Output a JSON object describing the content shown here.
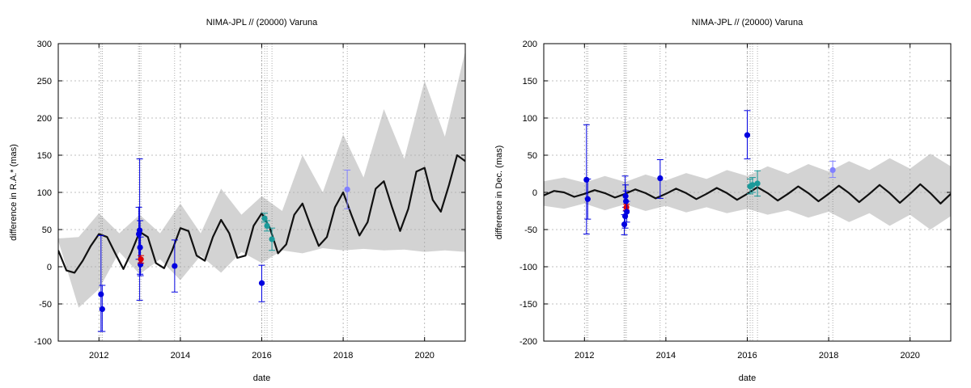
{
  "chart_data": [
    {
      "type": "scatter",
      "title": "NIMA-JPL // (20000) Varuna",
      "xlabel": "date",
      "ylabel": "difference in R.A.* (mas)",
      "xlim": [
        2011.0,
        2021.0
      ],
      "ylim": [
        -100,
        300
      ],
      "xticks": [
        2012,
        2014,
        2016,
        2018,
        2020
      ],
      "yticks": [
        -100,
        -50,
        0,
        50,
        100,
        150,
        200,
        250,
        300
      ],
      "grid": true,
      "observation_dates": [
        2012.05,
        2012.08,
        2012.97,
        2013.0,
        2013.03,
        2013.86,
        2016.0,
        2016.07,
        2016.13,
        2016.25,
        2018.1
      ],
      "uncertainty_band": {
        "x": [
          2011.0,
          2011.5,
          2012.0,
          2012.5,
          2013.0,
          2013.5,
          2014.0,
          2014.5,
          2015.0,
          2015.5,
          2016.0,
          2016.5,
          2017.0,
          2017.5,
          2018.0,
          2018.5,
          2019.0,
          2019.5,
          2020.0,
          2020.5,
          2021.0
        ],
        "lower": [
          35,
          -55,
          -30,
          20,
          -10,
          10,
          -18,
          15,
          -8,
          20,
          5,
          22,
          18,
          25,
          22,
          24,
          22,
          23,
          20,
          22,
          20
        ],
        "upper": [
          38,
          40,
          72,
          45,
          70,
          45,
          85,
          45,
          105,
          70,
          95,
          75,
          150,
          100,
          178,
          120,
          212,
          145,
          250,
          175,
          290
        ]
      },
      "model": {
        "x": [
          2011.0,
          2011.2,
          2011.4,
          2011.6,
          2011.8,
          2012.0,
          2012.2,
          2012.4,
          2012.6,
          2012.8,
          2013.0,
          2013.2,
          2013.4,
          2013.6,
          2013.8,
          2014.0,
          2014.2,
          2014.4,
          2014.6,
          2014.8,
          2015.0,
          2015.2,
          2015.4,
          2015.6,
          2015.8,
          2016.0,
          2016.2,
          2016.4,
          2016.6,
          2016.8,
          2017.0,
          2017.2,
          2017.4,
          2017.6,
          2017.8,
          2018.0,
          2018.2,
          2018.4,
          2018.6,
          2018.8,
          2019.0,
          2019.2,
          2019.4,
          2019.6,
          2019.8,
          2020.0,
          2020.2,
          2020.4,
          2020.6,
          2020.8,
          2021.0
        ],
        "y": [
          22,
          -5,
          -8,
          8,
          28,
          44,
          40,
          18,
          -3,
          20,
          47,
          40,
          5,
          -2,
          22,
          52,
          48,
          15,
          8,
          40,
          63,
          45,
          12,
          15,
          55,
          72,
          52,
          18,
          30,
          70,
          85,
          55,
          28,
          40,
          80,
          100,
          70,
          42,
          60,
          105,
          115,
          80,
          48,
          78,
          128,
          133,
          90,
          74,
          110,
          150,
          142
        ]
      },
      "points": [
        {
          "x": 2012.05,
          "y": -37,
          "err_low": -87,
          "err_high": 42,
          "color": "#0000e0"
        },
        {
          "x": 2012.08,
          "y": -57,
          "err_low": -87,
          "err_high": -25,
          "color": "#0000e0"
        },
        {
          "x": 2012.98,
          "y": 44,
          "err_low": 10,
          "err_high": 80,
          "color": "#0000e0"
        },
        {
          "x": 2013.0,
          "y": 49,
          "err_low": -45,
          "err_high": 145,
          "color": "#0000e0"
        },
        {
          "x": 2013.01,
          "y": 26,
          "err_low": -10,
          "err_high": 62,
          "color": "#0000e0"
        },
        {
          "x": 2013.02,
          "y": 3,
          "err_low": -12,
          "err_high": 40,
          "color": "#0000e0"
        },
        {
          "x": 2013.03,
          "y": 10,
          "err_low": 5,
          "err_high": 15,
          "color": "#e00000"
        },
        {
          "x": 2013.86,
          "y": 1,
          "err_low": -34,
          "err_high": 36,
          "color": "#0000e0"
        },
        {
          "x": 2016.0,
          "y": -22,
          "err_low": -47,
          "err_high": 2,
          "color": "#0000e0"
        },
        {
          "x": 2016.07,
          "y": 65,
          "err_low": 60,
          "err_high": 72,
          "color": "#1a9a9a"
        },
        {
          "x": 2016.13,
          "y": 55,
          "err_low": 48,
          "err_high": 62,
          "color": "#1a9a9a"
        },
        {
          "x": 2016.25,
          "y": 37,
          "err_low": 22,
          "err_high": 52,
          "color": "#1a9a9a"
        },
        {
          "x": 2018.1,
          "y": 104,
          "err_low": 78,
          "err_high": 130,
          "color": "#8080ff"
        }
      ]
    },
    {
      "type": "scatter",
      "title": "NIMA-JPL // (20000) Varuna",
      "xlabel": "date",
      "ylabel": "difference in Dec. (mas)",
      "xlim": [
        2011.0,
        2021.0
      ],
      "ylim": [
        -200,
        200
      ],
      "xticks": [
        2012,
        2014,
        2016,
        2018,
        2020
      ],
      "yticks": [
        -200,
        -150,
        -100,
        -50,
        0,
        50,
        100,
        150,
        200
      ],
      "grid": true,
      "observation_dates": [
        2012.05,
        2012.08,
        2012.97,
        2013.0,
        2013.03,
        2013.86,
        2016.0,
        2016.07,
        2016.13,
        2016.25,
        2018.1
      ],
      "uncertainty_band": {
        "x": [
          2011.0,
          2011.5,
          2012.0,
          2012.5,
          2013.0,
          2013.5,
          2014.0,
          2014.5,
          2015.0,
          2015.5,
          2016.0,
          2016.5,
          2017.0,
          2017.5,
          2018.0,
          2018.5,
          2019.0,
          2019.5,
          2020.0,
          2020.5,
          2021.0
        ],
        "lower": [
          -18,
          -22,
          -15,
          -24,
          -16,
          -25,
          -18,
          -27,
          -20,
          -28,
          -22,
          -30,
          -24,
          -34,
          -26,
          -40,
          -28,
          -45,
          -30,
          -50,
          -32
        ],
        "upper": [
          15,
          20,
          13,
          22,
          14,
          24,
          16,
          26,
          18,
          30,
          22,
          35,
          25,
          38,
          28,
          42,
          30,
          46,
          32,
          52,
          35
        ]
      },
      "model": {
        "x": [
          2011.0,
          2011.25,
          2011.5,
          2011.75,
          2012.0,
          2012.25,
          2012.5,
          2012.75,
          2013.0,
          2013.25,
          2013.5,
          2013.75,
          2014.0,
          2014.25,
          2014.5,
          2014.75,
          2015.0,
          2015.25,
          2015.5,
          2015.75,
          2016.0,
          2016.25,
          2016.5,
          2016.75,
          2017.0,
          2017.25,
          2017.5,
          2017.75,
          2018.0,
          2018.25,
          2018.5,
          2018.75,
          2019.0,
          2019.25,
          2019.5,
          2019.75,
          2020.0,
          2020.25,
          2020.5,
          2020.75,
          2021.0
        ],
        "y": [
          -4,
          2,
          0,
          -6,
          -2,
          3,
          -1,
          -7,
          -2,
          4,
          -1,
          -8,
          -2,
          5,
          -1,
          -9,
          -2,
          6,
          -1,
          -10,
          -2,
          7,
          -1,
          -11,
          -2,
          8,
          -1,
          -12,
          -2,
          9,
          -1,
          -13,
          -2,
          10,
          -1,
          -14,
          -2,
          11,
          -1,
          -15,
          -2
        ]
      },
      "points": [
        {
          "x": 2012.05,
          "y": 17,
          "err_low": -56,
          "err_high": 91,
          "color": "#0000e0"
        },
        {
          "x": 2012.08,
          "y": -9,
          "err_low": -36,
          "err_high": 18,
          "color": "#0000e0"
        },
        {
          "x": 2012.98,
          "y": -43,
          "err_low": -57,
          "err_high": -30,
          "color": "#0000e0"
        },
        {
          "x": 2013.0,
          "y": -32,
          "err_low": -48,
          "err_high": 22,
          "color": "#0000e0"
        },
        {
          "x": 2013.01,
          "y": -5,
          "err_low": -20,
          "err_high": 10,
          "color": "#0000e0"
        },
        {
          "x": 2013.02,
          "y": -12,
          "err_low": -25,
          "err_high": 2,
          "color": "#0000e0"
        },
        {
          "x": 2013.03,
          "y": -20,
          "err_low": -24,
          "err_high": -16,
          "color": "#e00000"
        },
        {
          "x": 2013.04,
          "y": -26,
          "err_low": -40,
          "err_high": -12,
          "color": "#0000e0"
        },
        {
          "x": 2013.86,
          "y": 19,
          "err_low": -8,
          "err_high": 44,
          "color": "#0000e0"
        },
        {
          "x": 2016.0,
          "y": 77,
          "err_low": 45,
          "err_high": 110,
          "color": "#0000e0"
        },
        {
          "x": 2016.07,
          "y": 8,
          "err_low": -2,
          "err_high": 18,
          "color": "#1a9a9a"
        },
        {
          "x": 2016.13,
          "y": 10,
          "err_low": 0,
          "err_high": 20,
          "color": "#1a9a9a"
        },
        {
          "x": 2016.25,
          "y": 12,
          "err_low": -5,
          "err_high": 29,
          "color": "#1a9a9a"
        },
        {
          "x": 2018.1,
          "y": 30,
          "err_low": 20,
          "err_high": 42,
          "color": "#8080ff"
        }
      ]
    }
  ]
}
